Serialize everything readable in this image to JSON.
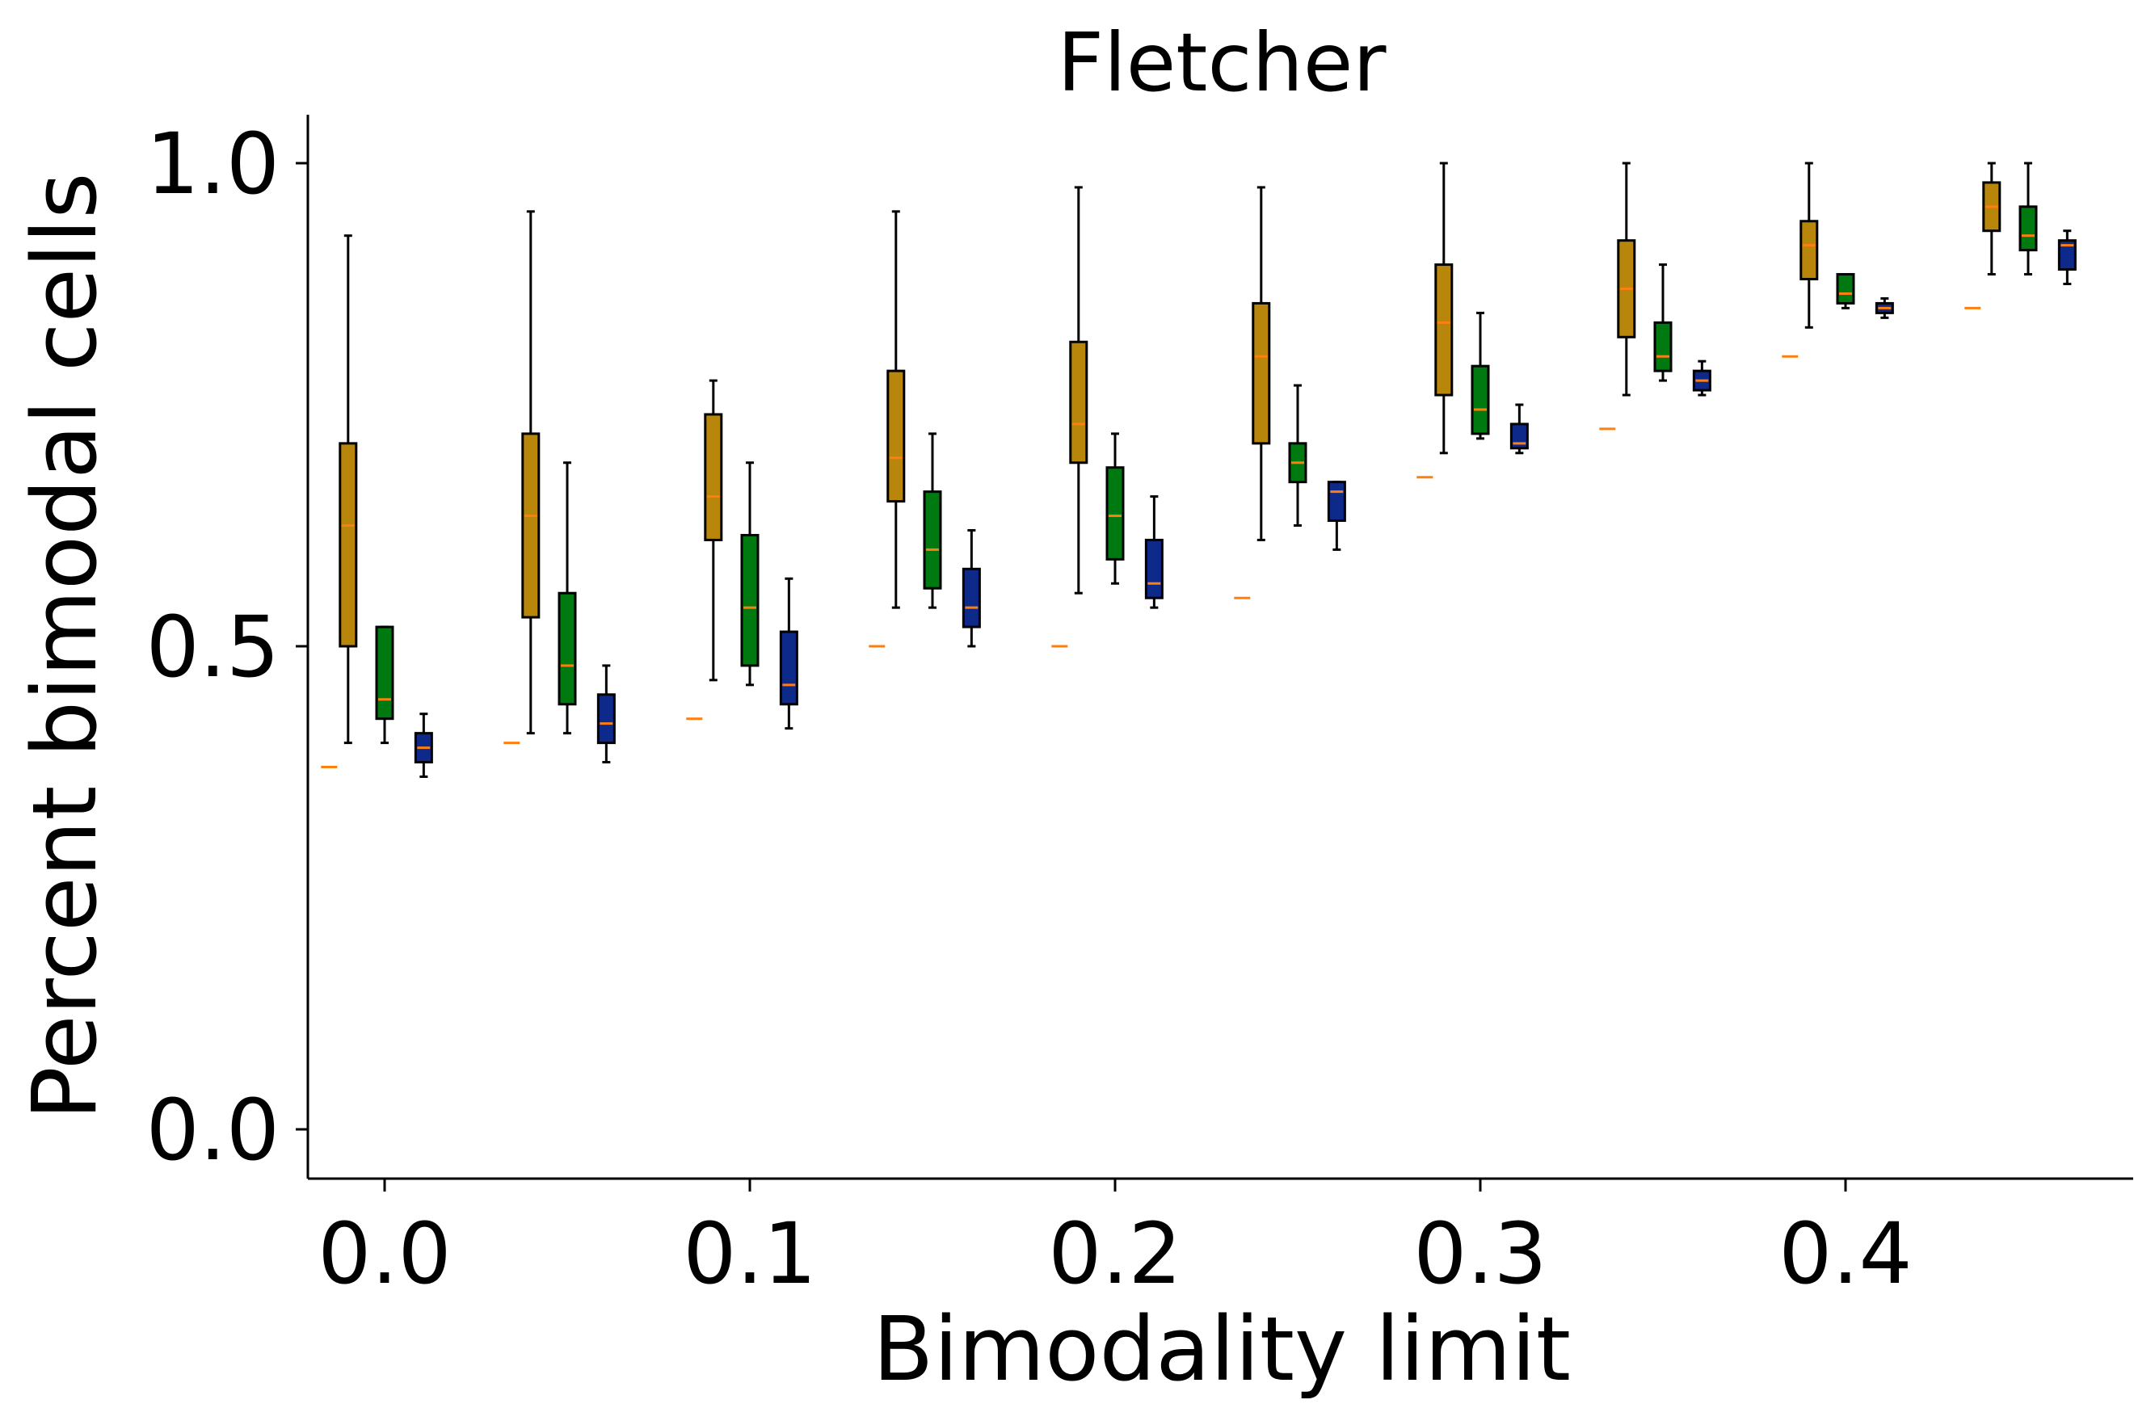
{
  "chart_data": {
    "type": "box",
    "title": "Fletcher",
    "xlabel": "Bimodality limit",
    "ylabel": "Percent bimodal cells",
    "xlim": [
      -0.02,
      0.48
    ],
    "ylim": [
      -0.05,
      1.05
    ],
    "x_ticks": [
      {
        "value": 0.0,
        "label": "0.0"
      },
      {
        "value": 0.1,
        "label": "0.1"
      },
      {
        "value": 0.2,
        "label": "0.2"
      },
      {
        "value": 0.3,
        "label": "0.3"
      },
      {
        "value": 0.4,
        "label": "0.4"
      }
    ],
    "y_ticks": [
      {
        "value": 0.0,
        "label": "0.0"
      },
      {
        "value": 0.5,
        "label": "0.5"
      },
      {
        "value": 1.0,
        "label": "1.0"
      }
    ],
    "grid": false,
    "median_color": "#ff7f0e",
    "series": [
      {
        "color": "#b8860b",
        "offset": -0.01,
        "boxes": [
          {
            "x": 0.0,
            "whislo": 0.4,
            "q1": 0.5,
            "med": 0.625,
            "q3": 0.71,
            "whishi": 0.925,
            "flier": null
          },
          {
            "x": 0.05,
            "whislo": 0.41,
            "q1": 0.53,
            "med": 0.635,
            "q3": 0.72,
            "whishi": 0.95,
            "flier": null
          },
          {
            "x": 0.1,
            "whislo": 0.465,
            "q1": 0.61,
            "med": 0.655,
            "q3": 0.74,
            "whishi": 0.775,
            "flier": null
          },
          {
            "x": 0.15,
            "whislo": 0.54,
            "q1": 0.65,
            "med": 0.695,
            "q3": 0.785,
            "whishi": 0.95,
            "flier": null
          },
          {
            "x": 0.2,
            "whislo": 0.555,
            "q1": 0.69,
            "med": 0.73,
            "q3": 0.815,
            "whishi": 0.975,
            "flier": null
          },
          {
            "x": 0.25,
            "whislo": 0.61,
            "q1": 0.71,
            "med": 0.8,
            "q3": 0.855,
            "whishi": 0.975,
            "flier": null
          },
          {
            "x": 0.3,
            "whislo": 0.7,
            "q1": 0.76,
            "med": 0.835,
            "q3": 0.895,
            "whishi": 1.0,
            "flier": null
          },
          {
            "x": 0.35,
            "whislo": 0.76,
            "q1": 0.82,
            "med": 0.87,
            "q3": 0.92,
            "whishi": 1.0,
            "flier": null
          },
          {
            "x": 0.4,
            "whislo": 0.83,
            "q1": 0.88,
            "med": 0.915,
            "q3": 0.94,
            "whishi": 1.0,
            "flier": null
          },
          {
            "x": 0.45,
            "whislo": 0.885,
            "q1": 0.93,
            "med": 0.955,
            "q3": 0.98,
            "whishi": 1.0,
            "flier": null
          }
        ]
      },
      {
        "color": "#007a10",
        "offset": 0.0,
        "boxes": [
          {
            "x": 0.0,
            "whislo": 0.4,
            "q1": 0.425,
            "med": 0.445,
            "q3": 0.52,
            "whishi": 0.52,
            "flier": 0.375
          },
          {
            "x": 0.05,
            "whislo": 0.41,
            "q1": 0.44,
            "med": 0.48,
            "q3": 0.555,
            "whishi": 0.69,
            "flier": 0.4
          },
          {
            "x": 0.1,
            "whislo": 0.46,
            "q1": 0.48,
            "med": 0.54,
            "q3": 0.615,
            "whishi": 0.69,
            "flier": 0.425
          },
          {
            "x": 0.15,
            "whislo": 0.54,
            "q1": 0.56,
            "med": 0.6,
            "q3": 0.66,
            "whishi": 0.72,
            "flier": 0.5
          },
          {
            "x": 0.2,
            "whislo": 0.565,
            "q1": 0.59,
            "med": 0.635,
            "q3": 0.685,
            "whishi": 0.72,
            "flier": 0.5
          },
          {
            "x": 0.25,
            "whislo": 0.625,
            "q1": 0.67,
            "med": 0.69,
            "q3": 0.71,
            "whishi": 0.77,
            "flier": 0.55
          },
          {
            "x": 0.3,
            "whislo": 0.715,
            "q1": 0.72,
            "med": 0.745,
            "q3": 0.79,
            "whishi": 0.845,
            "flier": 0.675
          },
          {
            "x": 0.35,
            "whislo": 0.775,
            "q1": 0.785,
            "med": 0.8,
            "q3": 0.835,
            "whishi": 0.895,
            "flier": 0.725
          },
          {
            "x": 0.4,
            "whislo": 0.85,
            "q1": 0.855,
            "med": 0.865,
            "q3": 0.885,
            "whishi": 0.885,
            "flier": 0.8
          },
          {
            "x": 0.45,
            "whislo": 0.885,
            "q1": 0.91,
            "med": 0.925,
            "q3": 0.955,
            "whishi": 1.0,
            "flier": 0.85
          }
        ]
      },
      {
        "color": "#0d2a8a",
        "offset": 0.0107,
        "boxes": [
          {
            "x": 0.0,
            "whislo": 0.365,
            "q1": 0.38,
            "med": 0.395,
            "q3": 0.41,
            "whishi": 0.43,
            "flier": null
          },
          {
            "x": 0.05,
            "whislo": 0.38,
            "q1": 0.4,
            "med": 0.42,
            "q3": 0.45,
            "whishi": 0.48,
            "flier": null
          },
          {
            "x": 0.1,
            "whislo": 0.415,
            "q1": 0.44,
            "med": 0.46,
            "q3": 0.515,
            "whishi": 0.57,
            "flier": null
          },
          {
            "x": 0.15,
            "whislo": 0.5,
            "q1": 0.52,
            "med": 0.54,
            "q3": 0.58,
            "whishi": 0.62,
            "flier": null
          },
          {
            "x": 0.2,
            "whislo": 0.54,
            "q1": 0.55,
            "med": 0.565,
            "q3": 0.61,
            "whishi": 0.655,
            "flier": null
          },
          {
            "x": 0.25,
            "whislo": 0.6,
            "q1": 0.63,
            "med": 0.66,
            "q3": 0.67,
            "whishi": 0.67,
            "flier": null
          },
          {
            "x": 0.3,
            "whislo": 0.7,
            "q1": 0.705,
            "med": 0.71,
            "q3": 0.73,
            "whishi": 0.75,
            "flier": null
          },
          {
            "x": 0.35,
            "whislo": 0.76,
            "q1": 0.765,
            "med": 0.775,
            "q3": 0.785,
            "whishi": 0.795,
            "flier": null
          },
          {
            "x": 0.4,
            "whislo": 0.84,
            "q1": 0.845,
            "med": 0.85,
            "q3": 0.855,
            "whishi": 0.86,
            "flier": null
          },
          {
            "x": 0.45,
            "whislo": 0.875,
            "q1": 0.89,
            "med": 0.915,
            "q3": 0.92,
            "whishi": 0.93,
            "flier": null
          }
        ]
      }
    ]
  }
}
